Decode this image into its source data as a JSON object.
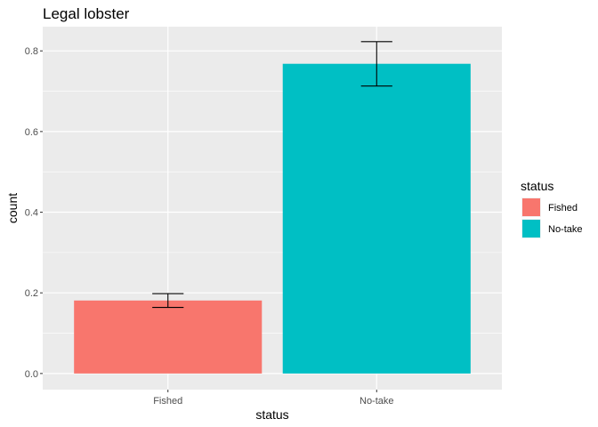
{
  "chart_data": {
    "type": "bar",
    "title": "Legal lobster",
    "xlabel": "status",
    "ylabel": "count",
    "categories": [
      "Fished",
      "No-take"
    ],
    "values": [
      0.181,
      0.768
    ],
    "error_low": [
      0.164,
      0.713
    ],
    "error_high": [
      0.198,
      0.823
    ],
    "colors": [
      "#F8766D",
      "#00BFC4"
    ],
    "ylim": [
      -0.04,
      0.86
    ],
    "yticks": [
      0.0,
      0.2,
      0.4,
      0.6,
      0.8
    ],
    "ytick_labels": [
      "0.0",
      "0.2",
      "0.4",
      "0.6",
      "0.8"
    ],
    "grid": true,
    "legend": {
      "title": "status",
      "placement": "right",
      "entries": [
        "Fished",
        "No-take"
      ]
    }
  }
}
